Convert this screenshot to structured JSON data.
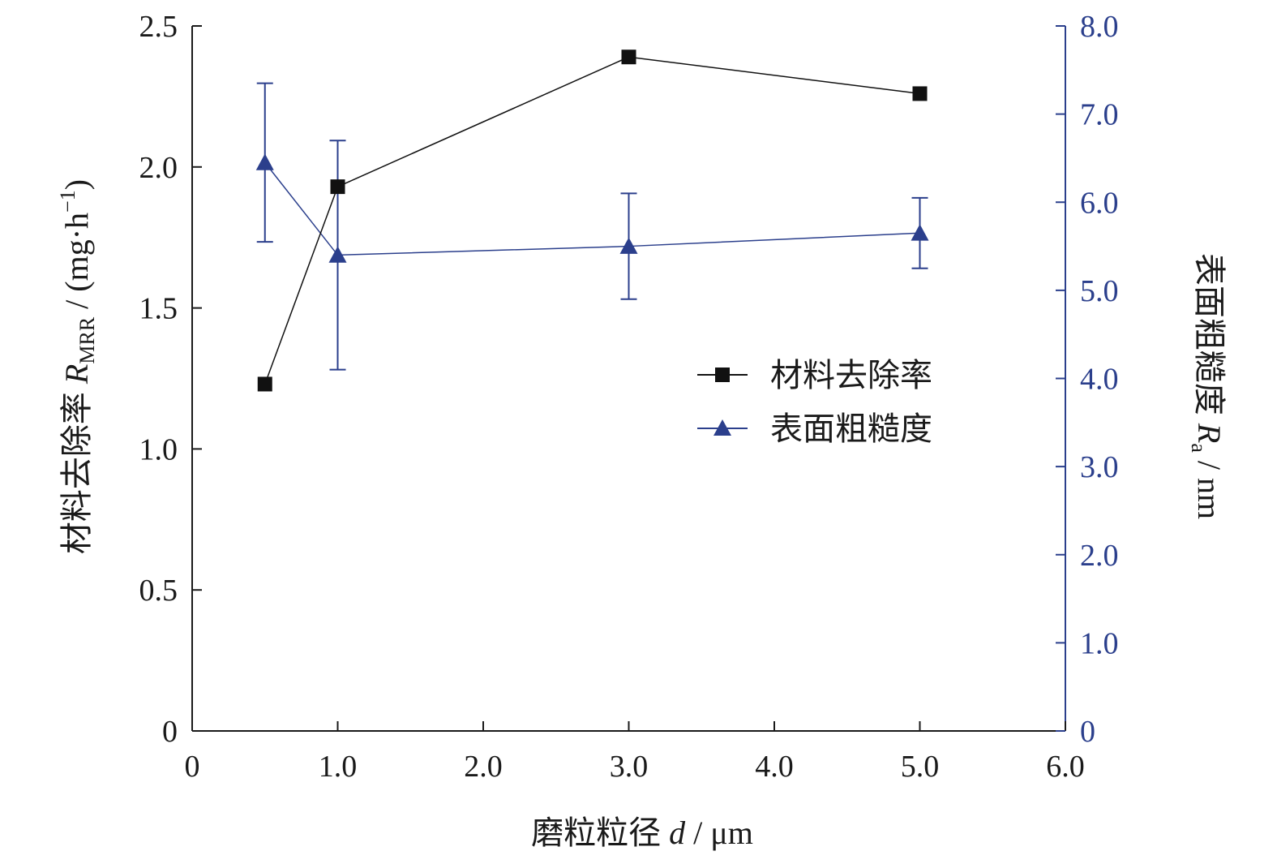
{
  "chart_data": {
    "type": "line",
    "xlabel": "磨粒粒径 d / μm",
    "ylabel_left": "材料去除率 R_MRR / (mg·h⁻¹)",
    "ylabel_right": "表面粗糙度 R_a / nm",
    "xlim": [
      0,
      6
    ],
    "ylim_left": [
      0,
      2.5
    ],
    "ylim_right": [
      0,
      8
    ],
    "x_ticks": [
      "0",
      "1.0",
      "2.0",
      "3.0",
      "4.0",
      "5.0",
      "6.0"
    ],
    "y_left_ticks": [
      "0",
      "0.5",
      "1.0",
      "1.5",
      "2.0",
      "2.5"
    ],
    "y_right_ticks": [
      "0",
      "1.0",
      "2.0",
      "3.0",
      "4.0",
      "5.0",
      "6.0",
      "7.0",
      "8.0"
    ],
    "grid": false,
    "legend_position": "center-right",
    "series": [
      {
        "name": "材料去除率",
        "axis": "left",
        "marker": "square",
        "color": "#111111",
        "x": [
          0.5,
          1.0,
          3.0,
          5.0
        ],
        "y": [
          1.23,
          1.93,
          2.39,
          2.26
        ]
      },
      {
        "name": "表面粗糙度",
        "axis": "right",
        "marker": "triangle",
        "color": "#2b3f8c",
        "x": [
          0.5,
          1.0,
          3.0,
          5.0
        ],
        "y": [
          6.45,
          5.4,
          5.5,
          5.65
        ],
        "error": [
          0.9,
          1.3,
          0.6,
          0.4
        ]
      }
    ]
  }
}
